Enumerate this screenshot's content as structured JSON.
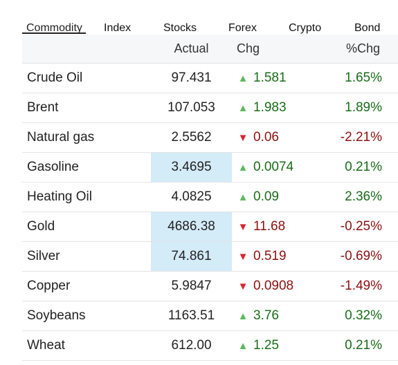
{
  "tabs": [
    {
      "label": "Commodity",
      "active": true
    },
    {
      "label": "Index",
      "active": false
    },
    {
      "label": "Stocks",
      "active": false
    },
    {
      "label": "Forex",
      "active": false
    },
    {
      "label": "Crypto",
      "active": false
    },
    {
      "label": "Bond",
      "active": false
    }
  ],
  "columns": {
    "name": "",
    "actual": "Actual",
    "chg": "Chg",
    "pct": "%Chg"
  },
  "colors": {
    "up": "#186b18",
    "down": "#8b0f0f",
    "up_arrow": "#5cb85c",
    "down_arrow": "#d9262e",
    "highlight": "#d4ebf8"
  },
  "icons": {
    "up": "triangle-up-icon",
    "down": "triangle-down-icon"
  },
  "rows": [
    {
      "name": "Crude Oil",
      "actual": "97.431",
      "chg": "1.581",
      "pct": "1.65%",
      "direction": "up",
      "highlight": false
    },
    {
      "name": "Brent",
      "actual": "107.053",
      "chg": "1.983",
      "pct": "1.89%",
      "direction": "up",
      "highlight": false
    },
    {
      "name": "Natural gas",
      "actual": "2.5562",
      "chg": "0.06",
      "pct": "-2.21%",
      "direction": "down",
      "highlight": false
    },
    {
      "name": "Gasoline",
      "actual": "3.4695",
      "chg": "0.0074",
      "pct": "0.21%",
      "direction": "up",
      "highlight": true
    },
    {
      "name": "Heating Oil",
      "actual": "4.0825",
      "chg": "0.09",
      "pct": "2.36%",
      "direction": "up",
      "highlight": false
    },
    {
      "name": "Gold",
      "actual": "4686.38",
      "chg": "11.68",
      "pct": "-0.25%",
      "direction": "down",
      "highlight": true
    },
    {
      "name": "Silver",
      "actual": "74.861",
      "chg": "0.519",
      "pct": "-0.69%",
      "direction": "down",
      "highlight": true
    },
    {
      "name": "Copper",
      "actual": "5.9847",
      "chg": "0.0908",
      "pct": "-1.49%",
      "direction": "down",
      "highlight": false
    },
    {
      "name": "Soybeans",
      "actual": "1163.51",
      "chg": "3.76",
      "pct": "0.32%",
      "direction": "up",
      "highlight": false
    },
    {
      "name": "Wheat",
      "actual": "612.00",
      "chg": "1.25",
      "pct": "0.21%",
      "direction": "up",
      "highlight": false
    }
  ]
}
